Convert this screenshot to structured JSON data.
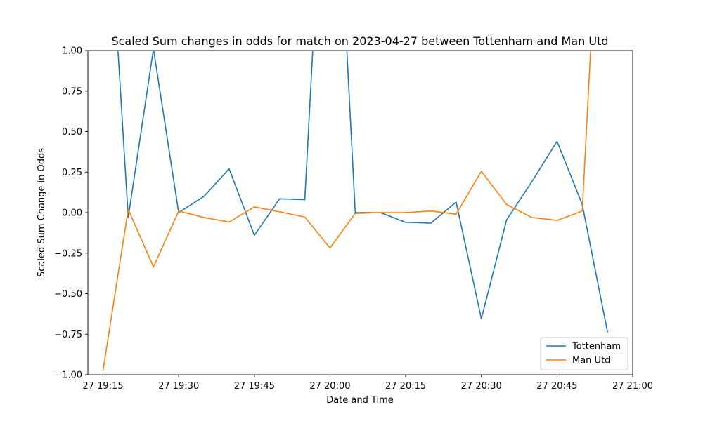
{
  "chart_data": {
    "type": "line",
    "title": "Scaled Sum changes in odds for match on 2023-04-27 between Tottenham and Man Utd",
    "xlabel": "Date and Time",
    "ylabel": "Scaled Sum Change in Odds",
    "xlim": [
      "2023-04-27 19:12",
      "2023-04-27 21:00"
    ],
    "ylim": [
      -1.0,
      1.0
    ],
    "x_ticks": [
      "2023-04-27 19:15",
      "2023-04-27 19:30",
      "2023-04-27 19:45",
      "2023-04-27 20:00",
      "2023-04-27 20:15",
      "2023-04-27 20:30",
      "2023-04-27 20:45",
      "2023-04-27 21:00"
    ],
    "x_tick_labels": [
      "27 19:15",
      "27 19:30",
      "27 19:45",
      "27 20:00",
      "27 20:15",
      "27 20:30",
      "27 20:45",
      "27 21:00"
    ],
    "y_ticks": [
      -1.0,
      -0.75,
      -0.5,
      -0.25,
      0.0,
      0.25,
      0.5,
      0.75,
      1.0
    ],
    "y_tick_labels": [
      "−1.00",
      "−0.75",
      "−0.50",
      "−0.25",
      "0.00",
      "0.25",
      "0.50",
      "0.75",
      "1.00"
    ],
    "grid": false,
    "legend_position": "lower-right",
    "series": [
      {
        "name": "Tottenham",
        "color": "#1f77b4",
        "points": [
          {
            "x": "2023-04-27 19:15",
            "y": 2.5
          },
          {
            "x": "2023-04-27 19:20",
            "y": -0.03
          },
          {
            "x": "2023-04-27 19:25",
            "y": 1.01
          },
          {
            "x": "2023-04-27 19:30",
            "y": 0.0
          },
          {
            "x": "2023-04-27 19:35",
            "y": 0.1
          },
          {
            "x": "2023-04-27 19:40",
            "y": 0.27
          },
          {
            "x": "2023-04-27 19:45",
            "y": -0.14
          },
          {
            "x": "2023-04-27 19:50",
            "y": 0.085
          },
          {
            "x": "2023-04-27 19:55",
            "y": 0.08
          },
          {
            "x": "2023-04-27 20:00",
            "y": 3.0
          },
          {
            "x": "2023-04-27 20:05",
            "y": 0.0
          },
          {
            "x": "2023-04-27 20:10",
            "y": 0.0
          },
          {
            "x": "2023-04-27 20:15",
            "y": -0.06
          },
          {
            "x": "2023-04-27 20:20",
            "y": -0.065
          },
          {
            "x": "2023-04-27 20:25",
            "y": 0.065
          },
          {
            "x": "2023-04-27 20:30",
            "y": -0.655
          },
          {
            "x": "2023-04-27 20:35",
            "y": -0.045
          },
          {
            "x": "2023-04-27 20:40",
            "y": 0.19
          },
          {
            "x": "2023-04-27 20:45",
            "y": 0.44
          },
          {
            "x": "2023-04-27 20:50",
            "y": 0.05
          },
          {
            "x": "2023-04-27 20:55",
            "y": -0.735
          }
        ]
      },
      {
        "name": "Man Utd",
        "color": "#ff7f0e",
        "points": [
          {
            "x": "2023-04-27 19:15",
            "y": -0.975
          },
          {
            "x": "2023-04-27 19:20",
            "y": 0.02
          },
          {
            "x": "2023-04-27 19:25",
            "y": -0.335
          },
          {
            "x": "2023-04-27 19:30",
            "y": 0.01
          },
          {
            "x": "2023-04-27 19:35",
            "y": -0.03
          },
          {
            "x": "2023-04-27 19:40",
            "y": -0.058
          },
          {
            "x": "2023-04-27 19:45",
            "y": 0.035
          },
          {
            "x": "2023-04-27 19:50",
            "y": 0.005
          },
          {
            "x": "2023-04-27 19:55",
            "y": -0.027
          },
          {
            "x": "2023-04-27 20:00",
            "y": -0.218
          },
          {
            "x": "2023-04-27 20:05",
            "y": -0.005
          },
          {
            "x": "2023-04-27 20:10",
            "y": 0.0
          },
          {
            "x": "2023-04-27 20:15",
            "y": 0.0
          },
          {
            "x": "2023-04-27 20:20",
            "y": 0.01
          },
          {
            "x": "2023-04-27 20:25",
            "y": -0.01
          },
          {
            "x": "2023-04-27 20:30",
            "y": 0.255
          },
          {
            "x": "2023-04-27 20:35",
            "y": 0.05
          },
          {
            "x": "2023-04-27 20:40",
            "y": -0.03
          },
          {
            "x": "2023-04-27 20:45",
            "y": -0.048
          },
          {
            "x": "2023-04-27 20:50",
            "y": 0.01
          },
          {
            "x": "2023-04-27 20:55",
            "y": 3.0
          }
        ]
      }
    ]
  }
}
